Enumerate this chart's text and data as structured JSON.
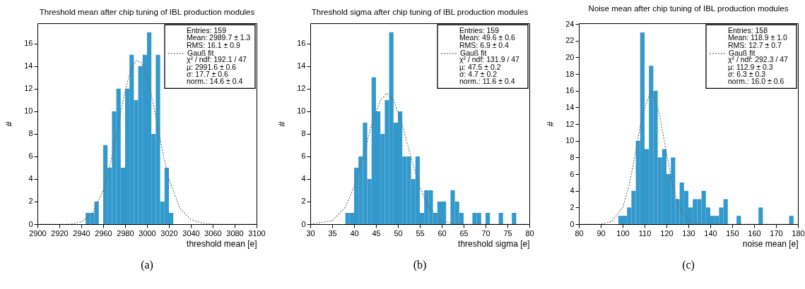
{
  "chart_data": [
    {
      "type": "histogram",
      "title": "Threshold mean after chip tuning of IBL production modules",
      "xlabel": "threshold mean  [e]",
      "ylabel": "#",
      "color": "#3399cc",
      "bins": [
        2900,
        2904,
        2908,
        2912,
        2916,
        2920,
        2924,
        2928,
        2932,
        2936,
        2940,
        2944,
        2948,
        2952,
        2956,
        2960,
        2964,
        2968,
        2972,
        2976,
        2980,
        2984,
        2988,
        2992,
        2996,
        3000,
        3004,
        3008,
        3012,
        3016,
        3020,
        3024,
        3028,
        3032,
        3036,
        3040,
        3044,
        3048,
        3052,
        3056,
        3060,
        3064,
        3068,
        3072,
        3076,
        3080,
        3084,
        3088,
        3092,
        3096,
        3100
      ],
      "values": [
        0,
        0,
        0,
        0,
        0,
        0,
        0,
        0,
        0,
        0,
        0,
        1,
        1,
        2,
        0,
        7,
        5,
        10,
        12,
        5,
        12,
        15,
        11,
        14,
        15,
        17,
        8,
        15,
        2,
        5,
        1,
        0,
        0,
        0,
        0,
        0,
        0,
        0,
        0,
        0,
        0,
        0,
        0,
        0,
        0,
        0,
        0,
        0,
        0,
        0
      ],
      "series": [
        {
          "type": "line",
          "name": "Gauß fit",
          "color": "#666666",
          "line_style": "dotted",
          "x": [
            2900,
            2930,
            2940,
            2950,
            2960,
            2965,
            2970,
            2975,
            2980,
            2985,
            2990,
            2995,
            3000,
            3005,
            3010,
            3015,
            3020,
            3030,
            3040,
            3050,
            3060,
            3100
          ],
          "values": [
            0,
            0,
            0.2,
            0.9,
            3.0,
            4.7,
            6.9,
            9.4,
            11.8,
            13.6,
            14.5,
            14.3,
            13.1,
            11.0,
            8.5,
            6.1,
            4.0,
            1.4,
            0.4,
            0.1,
            0,
            0
          ]
        }
      ],
      "xlim": [
        2900,
        3100
      ],
      "xticks": [
        2900,
        2920,
        2940,
        2960,
        2980,
        3000,
        3020,
        3040,
        3060,
        3080,
        3100
      ],
      "ylim": [
        0,
        17.8
      ],
      "yticks": [
        0,
        2,
        4,
        6,
        8,
        10,
        12,
        14,
        16
      ],
      "legend": "top right",
      "annotations": [
        "Entries: 159",
        "Mean: 2989.7 ± 1.3",
        "RMS:  16.1 ± 0.9",
        "χ² / ndf:  192.1 / 47",
        "µ:  2991.6 ± 0.6",
        "σ:  17.7 ± 0.6",
        "norm.:  14.6 ± 0.4",
        "(a)"
      ]
    },
    {
      "type": "histogram",
      "title": "Threshold sigma after chip tuning of IBL production modules",
      "xlabel": "threshold sigma [e]",
      "ylabel": "#",
      "color": "#3399cc",
      "bins": [
        30,
        31,
        32,
        33,
        34,
        35,
        36,
        37,
        38,
        39,
        40,
        41,
        42,
        43,
        44,
        45,
        46,
        47,
        48,
        49,
        50,
        51,
        52,
        53,
        54,
        55,
        56,
        57,
        58,
        59,
        60,
        61,
        62,
        63,
        64,
        65,
        66,
        67,
        68,
        69,
        70,
        71,
        72,
        73,
        74,
        75,
        76,
        77,
        78,
        79,
        80
      ],
      "values": [
        0,
        0,
        0,
        0,
        0,
        0,
        0,
        0,
        1,
        1,
        5,
        6,
        9,
        4,
        13,
        10,
        8,
        11,
        17,
        9,
        10,
        6,
        6,
        4,
        6,
        1,
        3,
        3,
        1,
        2,
        2,
        0,
        3,
        2,
        1,
        0,
        0,
        1,
        1,
        0,
        1,
        0,
        0,
        1,
        0,
        0,
        1,
        0,
        0,
        0
      ],
      "series": [
        {
          "type": "line",
          "name": "Gauß fit",
          "color": "#666666",
          "line_style": "dotted",
          "x": [
            30,
            35,
            38,
            40,
            42,
            44,
            46,
            47.5,
            49,
            51,
            53,
            55,
            57,
            60,
            62,
            65,
            80
          ],
          "values": [
            0,
            0.3,
            1.5,
            3.3,
            5.9,
            8.8,
            11.0,
            11.6,
            11.0,
            8.8,
            5.9,
            3.3,
            1.5,
            0.3,
            0.1,
            0,
            0
          ]
        }
      ],
      "xlim": [
        30,
        80
      ],
      "xticks": [
        30,
        35,
        40,
        45,
        50,
        55,
        60,
        65,
        70,
        75,
        80
      ],
      "ylim": [
        0,
        17.8
      ],
      "yticks": [
        0,
        2,
        4,
        6,
        8,
        10,
        12,
        14,
        16
      ],
      "legend": "top right",
      "annotations": [
        "Entries: 159",
        "Mean: 49.6 ± 0.6",
        "RMS:   6.9 ± 0.4",
        "χ² / ndf:  131.9 / 47",
        "µ:  47.5 ± 0.2",
        "σ:   4.7 ± 0.2",
        "norm.:  11.6 ± 0.4",
        "(b)"
      ]
    },
    {
      "type": "histogram",
      "title": "Noise mean after chip tuning of IBL production modules",
      "xlabel": "noise mean [e]",
      "ylabel": "#",
      "color": "#3399cc",
      "bins": [
        80,
        82,
        84,
        86,
        88,
        90,
        92,
        94,
        96,
        98,
        100,
        102,
        104,
        106,
        108,
        110,
        112,
        114,
        116,
        118,
        120,
        122,
        124,
        126,
        128,
        130,
        132,
        134,
        136,
        138,
        140,
        142,
        144,
        146,
        148,
        150,
        152,
        154,
        156,
        158,
        160,
        162,
        164,
        166,
        168,
        170,
        172,
        174,
        176,
        178,
        180
      ],
      "values": [
        0,
        0,
        0,
        0,
        0,
        0,
        0,
        0,
        0,
        1,
        1,
        2,
        4,
        10,
        23,
        9,
        19,
        16,
        8,
        9,
        6,
        8,
        3,
        5,
        4,
        2,
        3,
        3,
        4,
        2,
        1,
        1,
        2,
        3,
        0,
        0,
        1,
        0,
        0,
        0,
        0,
        2,
        0,
        0,
        0,
        0,
        0,
        0,
        1,
        0
      ],
      "series": [
        {
          "type": "line",
          "name": "Gauß fit",
          "color": "#666666",
          "line_style": "dotted",
          "x": [
            80,
            90,
            95,
            100,
            103,
            106,
            109,
            112.9,
            116.8,
            119.8,
            122.8,
            125.8,
            130.8,
            135,
            180
          ],
          "values": [
            0,
            0,
            0.3,
            2.0,
            4.7,
            8.8,
            13.2,
            16.0,
            13.2,
            8.8,
            4.7,
            2.0,
            0.3,
            0,
            0
          ]
        }
      ],
      "xlim": [
        80,
        180
      ],
      "xticks": [
        80,
        90,
        100,
        110,
        120,
        130,
        140,
        150,
        160,
        170,
        180
      ],
      "ylim": [
        0,
        24.1
      ],
      "yticks": [
        0,
        2,
        4,
        6,
        8,
        10,
        12,
        14,
        16,
        18,
        20,
        22,
        24
      ],
      "legend": "top right",
      "annotations": [
        "Entries: 158",
        "Mean: 118.9 ± 1.0",
        "RMS:  12.7 ± 0.7",
        "χ² / ndf:  292.3 / 47",
        "µ:  112.9 ± 0.3",
        "σ:   6.3 ± 0.3",
        "norm.:  16.0 ± 0.6",
        "(c)"
      ]
    }
  ]
}
